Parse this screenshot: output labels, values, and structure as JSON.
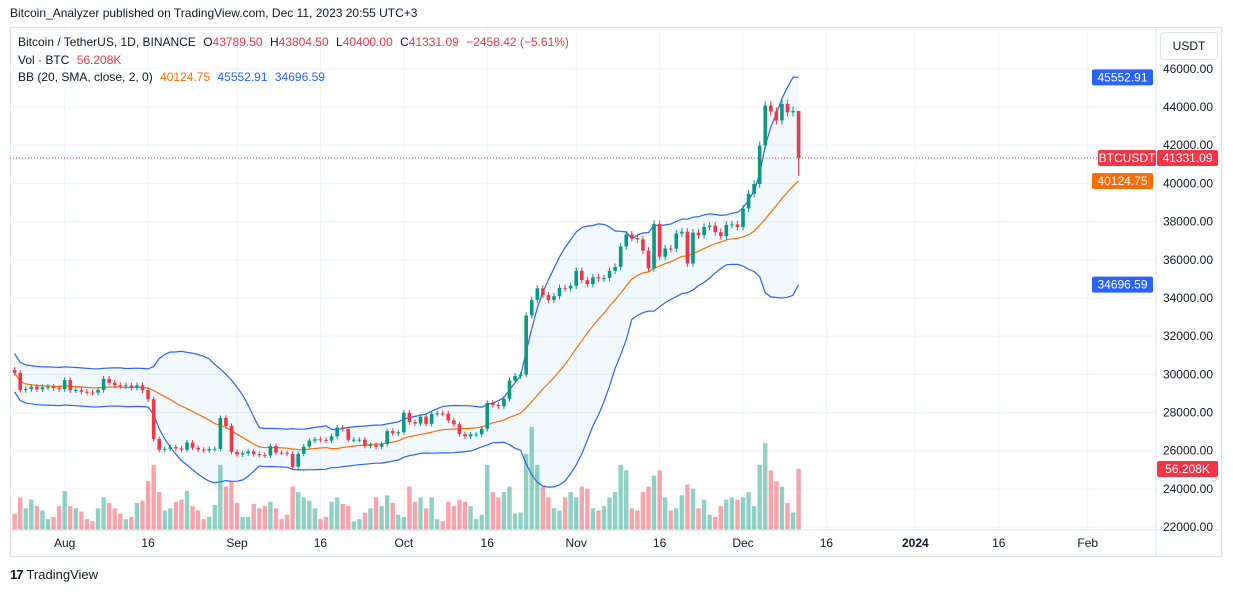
{
  "published": "Bitcoin_Analyzer published on TradingView.com, Dec 11, 2023 20:55 UTC+3",
  "legend": {
    "symbol": "Bitcoin / TetherUS, 1D, BINANCE",
    "o_label": "O",
    "o": "43789.50",
    "h_label": "H",
    "h": "43804.50",
    "l_label": "L",
    "l": "40400.00",
    "c_label": "C",
    "c": "41331.09",
    "change": "−2458.42 (−5.61%)",
    "vol_label": "Vol · BTC",
    "vol": "56.208K",
    "bb_label": "BB (20, SMA, close, 2, 0)",
    "bb_basis": "40124.75",
    "bb_upper": "45552.91",
    "bb_lower": "34696.59"
  },
  "currency_button": "USDT",
  "price_labels": {
    "upper": {
      "text": "45552.91",
      "value": 45552.91,
      "color": "#2962ff"
    },
    "symbol_tag": "BTCUSDT",
    "last": {
      "text": "41331.09",
      "value": 41331.09,
      "color": "#f23645"
    },
    "basis": {
      "text": "40124.75",
      "value": 40124.75,
      "color": "#ff6d00"
    },
    "lower": {
      "text": "34696.59",
      "value": 34696.59,
      "color": "#2962ff"
    },
    "volume": {
      "text": "56.208K",
      "value": 56.208,
      "color": "#f23645"
    }
  },
  "footer_logo": "TradingView",
  "colors": {
    "up": "#089981",
    "down": "#f23645",
    "bb_band": "#2962ff",
    "bb_basis": "#ff6d00"
  },
  "chart_data": {
    "type": "candlestick",
    "symbol": "BTCUSDT",
    "interval": "1D",
    "ylim": [
      21850,
      48190
    ],
    "y_ticks": [
      "22000.00",
      "24000.00",
      "26000.00",
      "28000.00",
      "30000.00",
      "32000.00",
      "34000.00",
      "36000.00",
      "38000.00",
      "40000.00",
      "42000.00",
      "44000.00",
      "46000.00"
    ],
    "x_ticks": [
      {
        "label": "Aug",
        "date": "2023-08-01"
      },
      {
        "label": "16",
        "date": "2023-08-16"
      },
      {
        "label": "Sep",
        "date": "2023-09-01"
      },
      {
        "label": "16",
        "date": "2023-09-16"
      },
      {
        "label": "Oct",
        "date": "2023-10-01"
      },
      {
        "label": "16",
        "date": "2023-10-16"
      },
      {
        "label": "Nov",
        "date": "2023-11-01"
      },
      {
        "label": "16",
        "date": "2023-11-16"
      },
      {
        "label": "Dec",
        "date": "2023-12-01"
      },
      {
        "label": "16",
        "date": "2023-12-16"
      },
      {
        "label": "2024",
        "date": "2024-01-01"
      },
      {
        "label": "16",
        "date": "2024-01-16"
      },
      {
        "label": "Feb",
        "date": "2024-02-01"
      }
    ],
    "grid": true,
    "indicators": [
      "Volume",
      "Bollinger Bands (20, SMA, close, 2, 0)"
    ],
    "candles_columns": [
      "date",
      "close",
      "volume_k"
    ],
    "candles": [
      [
        "2023-07-23",
        30080,
        15
      ],
      [
        "2023-07-24",
        29180,
        30
      ],
      [
        "2023-07-25",
        29230,
        20
      ],
      [
        "2023-07-26",
        29350,
        28
      ],
      [
        "2023-07-27",
        29220,
        22
      ],
      [
        "2023-07-28",
        29320,
        18
      ],
      [
        "2023-07-29",
        29350,
        10
      ],
      [
        "2023-07-30",
        29280,
        12
      ],
      [
        "2023-07-31",
        29230,
        22
      ],
      [
        "2023-08-01",
        29700,
        36
      ],
      [
        "2023-08-02",
        29170,
        22
      ],
      [
        "2023-08-03",
        29180,
        20
      ],
      [
        "2023-08-04",
        29090,
        17
      ],
      [
        "2023-08-05",
        29050,
        10
      ],
      [
        "2023-08-06",
        29040,
        8
      ],
      [
        "2023-08-07",
        29180,
        20
      ],
      [
        "2023-08-08",
        29770,
        30
      ],
      [
        "2023-08-09",
        29560,
        25
      ],
      [
        "2023-08-10",
        29430,
        20
      ],
      [
        "2023-08-11",
        29400,
        15
      ],
      [
        "2023-08-12",
        29420,
        10
      ],
      [
        "2023-08-13",
        29300,
        12
      ],
      [
        "2023-08-14",
        29430,
        25
      ],
      [
        "2023-08-15",
        29170,
        27
      ],
      [
        "2023-08-16",
        28700,
        45
      ],
      [
        "2023-08-17",
        26620,
        60
      ],
      [
        "2023-08-18",
        26050,
        35
      ],
      [
        "2023-08-19",
        26100,
        18
      ],
      [
        "2023-08-20",
        26190,
        20
      ],
      [
        "2023-08-21",
        26120,
        26
      ],
      [
        "2023-08-22",
        26050,
        28
      ],
      [
        "2023-08-23",
        26430,
        36
      ],
      [
        "2023-08-24",
        26160,
        22
      ],
      [
        "2023-08-25",
        26060,
        18
      ],
      [
        "2023-08-26",
        26010,
        10
      ],
      [
        "2023-08-27",
        26090,
        12
      ],
      [
        "2023-08-28",
        26100,
        23
      ],
      [
        "2023-08-29",
        27720,
        60
      ],
      [
        "2023-08-30",
        27300,
        40
      ],
      [
        "2023-08-31",
        25940,
        45
      ],
      [
        "2023-09-01",
        25800,
        25
      ],
      [
        "2023-09-02",
        25870,
        12
      ],
      [
        "2023-09-03",
        25970,
        12
      ],
      [
        "2023-09-04",
        25820,
        24
      ],
      [
        "2023-09-05",
        25780,
        20
      ],
      [
        "2023-09-06",
        25750,
        22
      ],
      [
        "2023-09-07",
        26240,
        26
      ],
      [
        "2023-09-08",
        25900,
        20
      ],
      [
        "2023-09-09",
        25890,
        10
      ],
      [
        "2023-09-10",
        25840,
        14
      ],
      [
        "2023-09-11",
        25160,
        40
      ],
      [
        "2023-09-12",
        25840,
        35
      ],
      [
        "2023-09-13",
        26220,
        30
      ],
      [
        "2023-09-14",
        26530,
        27
      ],
      [
        "2023-09-15",
        26600,
        20
      ],
      [
        "2023-09-16",
        26570,
        10
      ],
      [
        "2023-09-17",
        26530,
        12
      ],
      [
        "2023-09-18",
        26760,
        26
      ],
      [
        "2023-09-19",
        27210,
        30
      ],
      [
        "2023-09-20",
        27130,
        24
      ],
      [
        "2023-09-21",
        26570,
        22
      ],
      [
        "2023-09-22",
        26580,
        8
      ],
      [
        "2023-09-23",
        26580,
        10
      ],
      [
        "2023-09-24",
        26250,
        16
      ],
      [
        "2023-09-25",
        26300,
        20
      ],
      [
        "2023-09-26",
        26210,
        30
      ],
      [
        "2023-09-27",
        26350,
        22
      ],
      [
        "2023-09-28",
        27030,
        32
      ],
      [
        "2023-09-29",
        26910,
        25
      ],
      [
        "2023-09-30",
        26970,
        14
      ],
      [
        "2023-10-01",
        27990,
        12
      ],
      [
        "2023-10-02",
        27500,
        40
      ],
      [
        "2023-10-03",
        27430,
        26
      ],
      [
        "2023-10-04",
        27790,
        30
      ],
      [
        "2023-10-05",
        27410,
        20
      ],
      [
        "2023-10-06",
        27930,
        30
      ],
      [
        "2023-10-07",
        27960,
        10
      ],
      [
        "2023-10-08",
        27940,
        8
      ],
      [
        "2023-10-09",
        27590,
        26
      ],
      [
        "2023-10-10",
        27390,
        22
      ],
      [
        "2023-10-11",
        26870,
        28
      ],
      [
        "2023-10-12",
        26750,
        26
      ],
      [
        "2023-10-13",
        26860,
        22
      ],
      [
        "2023-10-14",
        26860,
        10
      ],
      [
        "2023-10-15",
        27150,
        14
      ],
      [
        "2023-10-16",
        28500,
        60
      ],
      [
        "2023-10-17",
        28400,
        35
      ],
      [
        "2023-10-18",
        28330,
        30
      ],
      [
        "2023-10-19",
        28720,
        35
      ],
      [
        "2023-10-20",
        29680,
        40
      ],
      [
        "2023-10-21",
        29920,
        15
      ],
      [
        "2023-10-22",
        29990,
        16
      ],
      [
        "2023-10-23",
        33080,
        70
      ],
      [
        "2023-10-24",
        33900,
        95
      ],
      [
        "2023-10-25",
        34500,
        60
      ],
      [
        "2023-10-26",
        34150,
        40
      ],
      [
        "2023-10-27",
        33900,
        30
      ],
      [
        "2023-10-28",
        34090,
        20
      ],
      [
        "2023-10-29",
        34530,
        18
      ],
      [
        "2023-10-30",
        34500,
        30
      ],
      [
        "2023-10-31",
        34640,
        35
      ],
      [
        "2023-11-01",
        35420,
        30
      ],
      [
        "2023-11-02",
        34940,
        40
      ],
      [
        "2023-11-03",
        34730,
        38
      ],
      [
        "2023-11-04",
        35080,
        20
      ],
      [
        "2023-11-05",
        35020,
        18
      ],
      [
        "2023-11-06",
        35050,
        22
      ],
      [
        "2023-11-07",
        35420,
        30
      ],
      [
        "2023-11-08",
        35630,
        35
      ],
      [
        "2023-11-09",
        36700,
        60
      ],
      [
        "2023-11-10",
        37320,
        55
      ],
      [
        "2023-11-11",
        37140,
        20
      ],
      [
        "2023-11-12",
        37070,
        18
      ],
      [
        "2023-11-13",
        36480,
        35
      ],
      [
        "2023-11-14",
        35550,
        40
      ],
      [
        "2023-11-15",
        37880,
        50
      ],
      [
        "2023-11-16",
        36160,
        55
      ],
      [
        "2023-11-17",
        36590,
        30
      ],
      [
        "2023-11-18",
        36580,
        18
      ],
      [
        "2023-11-19",
        37380,
        20
      ],
      [
        "2023-11-20",
        37470,
        32
      ],
      [
        "2023-11-21",
        35810,
        42
      ],
      [
        "2023-11-22",
        37420,
        38
      ],
      [
        "2023-11-23",
        37290,
        20
      ],
      [
        "2023-11-24",
        37720,
        28
      ],
      [
        "2023-11-25",
        37790,
        14
      ],
      [
        "2023-11-26",
        37450,
        12
      ],
      [
        "2023-11-27",
        37240,
        22
      ],
      [
        "2023-11-28",
        37830,
        28
      ],
      [
        "2023-11-29",
        37850,
        30
      ],
      [
        "2023-11-30",
        37720,
        28
      ],
      [
        "2023-12-01",
        38690,
        30
      ],
      [
        "2023-12-02",
        39460,
        35
      ],
      [
        "2023-12-03",
        39970,
        22
      ],
      [
        "2023-12-04",
        41980,
        60
      ],
      [
        "2023-12-05",
        44080,
        80
      ],
      [
        "2023-12-06",
        43770,
        55
      ],
      [
        "2023-12-07",
        43290,
        45
      ],
      [
        "2023-12-08",
        44170,
        40
      ],
      [
        "2023-12-09",
        43720,
        25
      ],
      [
        "2023-12-10",
        43790,
        16
      ],
      [
        "2023-12-11",
        41331.09,
        56.208
      ]
    ]
  }
}
